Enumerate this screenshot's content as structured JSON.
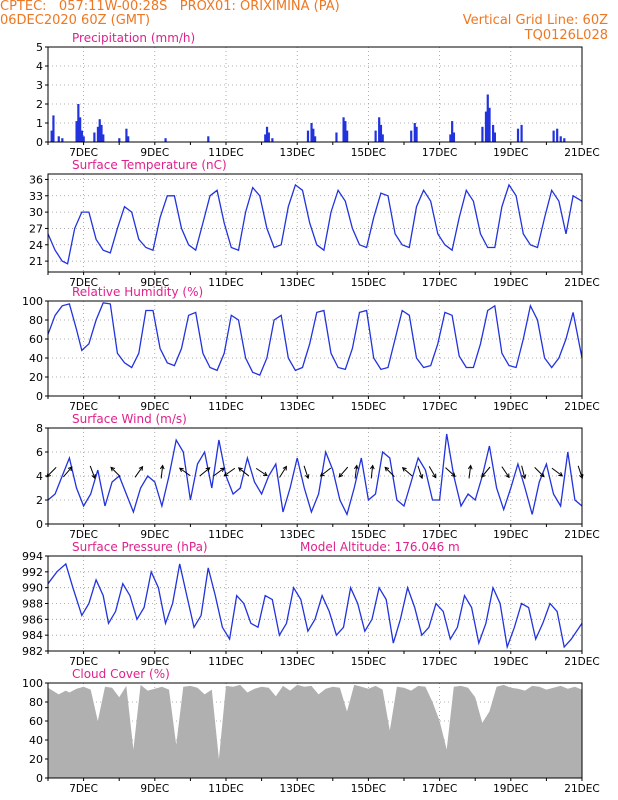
{
  "header": {
    "line1": "CPTEC:   057:11W-00:28S   PROX01: ORIXIMINA (PA)",
    "line2": "06DEC2020 60Z (GMT)",
    "grid_note": "Vertical Grid Line: 60Z",
    "code": "TQ0126L028"
  },
  "colors": {
    "header": "#ee7722",
    "title": "#e0208c",
    "line": "#2233dd",
    "cloud": "#b0b0b0"
  },
  "x_axis": {
    "labels": [
      "7DEC",
      "9DEC",
      "11DEC",
      "13DEC",
      "15DEC",
      "17DEC",
      "19DEC",
      "21DEC"
    ],
    "label_days": [
      1,
      3,
      5,
      7,
      9,
      11,
      13,
      15
    ],
    "range_days": [
      0,
      15
    ]
  },
  "chart_data": [
    {
      "id": "precip",
      "type": "bar",
      "title": "Precipitation (mm/h)",
      "ylim": [
        0,
        5
      ],
      "yticks": [
        0,
        1,
        2,
        3,
        4,
        5
      ],
      "x_days": [
        0.1,
        0.15,
        0.3,
        0.4,
        0.8,
        0.85,
        0.9,
        0.95,
        1.0,
        1.3,
        1.4,
        1.45,
        1.5,
        1.55,
        2.0,
        2.2,
        2.25,
        3.3,
        4.5,
        6.1,
        6.15,
        6.2,
        6.3,
        7.3,
        7.4,
        7.45,
        7.5,
        8.1,
        8.3,
        8.35,
        8.4,
        9.2,
        9.3,
        9.35,
        9.4,
        10.2,
        10.3,
        10.35,
        11.3,
        11.35,
        11.4,
        12.2,
        12.3,
        12.35,
        12.4,
        12.5,
        12.55,
        13.2,
        13.3,
        14.2,
        14.3,
        14.4,
        14.5
      ],
      "values": [
        0.6,
        1.4,
        0.3,
        0.2,
        1.1,
        2.0,
        1.3,
        0.6,
        0.3,
        0.5,
        0.8,
        1.2,
        0.9,
        0.4,
        0.2,
        0.7,
        0.3,
        0.2,
        0.3,
        0.4,
        0.8,
        0.5,
        0.2,
        0.6,
        1.0,
        0.7,
        0.3,
        0.5,
        1.3,
        1.1,
        0.6,
        0.6,
        1.3,
        0.9,
        0.4,
        0.6,
        1.0,
        0.8,
        0.4,
        1.1,
        0.5,
        0.8,
        1.6,
        2.5,
        1.8,
        0.9,
        0.5,
        0.7,
        0.9,
        0.6,
        0.7,
        0.3,
        0.2
      ]
    },
    {
      "id": "temp",
      "type": "line",
      "title": "Surface Temperature (nC)",
      "ylim": [
        19,
        37
      ],
      "yticks": [
        21,
        24,
        27,
        30,
        33,
        36
      ],
      "x_days": [
        0,
        0.2,
        0.4,
        0.55,
        0.75,
        0.95,
        1.15,
        1.35,
        1.55,
        1.75,
        1.95,
        2.15,
        2.35,
        2.55,
        2.75,
        2.95,
        3.15,
        3.35,
        3.55,
        3.75,
        3.95,
        4.15,
        4.35,
        4.55,
        4.75,
        4.95,
        5.15,
        5.35,
        5.55,
        5.75,
        5.95,
        6.15,
        6.35,
        6.55,
        6.75,
        6.95,
        7.15,
        7.35,
        7.55,
        7.75,
        7.95,
        8.15,
        8.35,
        8.55,
        8.75,
        8.95,
        9.15,
        9.35,
        9.55,
        9.75,
        9.95,
        10.15,
        10.35,
        10.55,
        10.75,
        10.95,
        11.15,
        11.35,
        11.55,
        11.75,
        11.95,
        12.15,
        12.35,
        12.55,
        12.75,
        12.95,
        13.15,
        13.35,
        13.55,
        13.75,
        13.95,
        14.15,
        14.35,
        14.55,
        14.75,
        15
      ],
      "values": [
        26,
        23,
        21,
        20.5,
        27,
        30,
        30,
        25,
        23,
        22.5,
        27,
        31,
        30,
        25,
        23.5,
        23,
        29,
        33,
        33,
        27,
        24,
        23,
        28,
        33,
        34,
        28,
        23.5,
        23,
        30,
        34.5,
        33,
        27,
        23.5,
        24,
        31,
        35,
        34,
        28,
        24,
        23,
        30,
        34,
        32,
        27,
        24,
        23.5,
        29,
        33.5,
        33,
        26,
        24,
        23.5,
        31,
        34,
        32,
        26,
        24,
        23,
        29,
        34,
        32,
        26,
        23.5,
        23.5,
        31,
        35,
        33,
        26,
        24,
        23.5,
        29,
        34,
        32,
        26,
        33,
        32
      ]
    },
    {
      "id": "rh",
      "type": "line",
      "title": "Relative Humidity (%)",
      "ylim": [
        0,
        100
      ],
      "yticks": [
        0,
        20,
        40,
        60,
        80,
        100
      ],
      "x_days": [
        0,
        0.2,
        0.4,
        0.6,
        0.8,
        0.95,
        1.15,
        1.35,
        1.55,
        1.75,
        1.95,
        2.15,
        2.35,
        2.55,
        2.75,
        2.95,
        3.15,
        3.35,
        3.55,
        3.75,
        3.95,
        4.15,
        4.35,
        4.55,
        4.75,
        4.95,
        5.15,
        5.35,
        5.55,
        5.75,
        5.95,
        6.15,
        6.35,
        6.55,
        6.75,
        6.95,
        7.15,
        7.35,
        7.55,
        7.75,
        7.95,
        8.15,
        8.35,
        8.55,
        8.75,
        8.95,
        9.15,
        9.35,
        9.55,
        9.75,
        9.95,
        10.15,
        10.35,
        10.55,
        10.75,
        10.95,
        11.15,
        11.35,
        11.55,
        11.75,
        11.95,
        12.15,
        12.35,
        12.55,
        12.75,
        12.95,
        13.15,
        13.35,
        13.55,
        13.75,
        13.95,
        14.15,
        14.35,
        14.55,
        14.75,
        15
      ],
      "values": [
        65,
        85,
        95,
        97,
        70,
        48,
        55,
        80,
        98,
        97,
        45,
        35,
        30,
        45,
        90,
        90,
        50,
        35,
        32,
        50,
        85,
        88,
        45,
        30,
        27,
        45,
        85,
        80,
        40,
        25,
        22,
        40,
        80,
        85,
        40,
        27,
        30,
        55,
        88,
        90,
        45,
        30,
        28,
        50,
        88,
        90,
        40,
        28,
        30,
        60,
        90,
        85,
        40,
        30,
        32,
        55,
        88,
        85,
        42,
        30,
        30,
        55,
        90,
        95,
        45,
        32,
        30,
        60,
        95,
        80,
        40,
        30,
        40,
        60,
        88,
        40
      ]
    },
    {
      "id": "wind",
      "type": "line",
      "title": "Surface Wind (m/s)",
      "ylim": [
        0,
        8
      ],
      "yticks": [
        0,
        2,
        4,
        6,
        8
      ],
      "x_days": [
        0,
        0.2,
        0.4,
        0.6,
        0.8,
        1.0,
        1.2,
        1.4,
        1.6,
        1.8,
        2.0,
        2.2,
        2.4,
        2.6,
        2.8,
        3.0,
        3.2,
        3.4,
        3.6,
        3.8,
        4.0,
        4.2,
        4.4,
        4.6,
        4.8,
        5.0,
        5.2,
        5.4,
        5.6,
        5.8,
        6.0,
        6.2,
        6.4,
        6.6,
        6.8,
        7.0,
        7.2,
        7.4,
        7.6,
        7.8,
        8.0,
        8.2,
        8.4,
        8.6,
        8.8,
        9.0,
        9.2,
        9.4,
        9.6,
        9.8,
        10.0,
        10.2,
        10.4,
        10.6,
        10.8,
        11.0,
        11.2,
        11.4,
        11.6,
        11.8,
        12.0,
        12.2,
        12.4,
        12.6,
        12.8,
        13.0,
        13.2,
        13.4,
        13.6,
        13.8,
        14.0,
        14.2,
        14.4,
        14.6,
        14.8,
        15
      ],
      "values": [
        2,
        2.5,
        4,
        5.5,
        3,
        1.5,
        2.5,
        4.5,
        1.5,
        3.5,
        4,
        2.5,
        1,
        3,
        4,
        3.5,
        1.5,
        4,
        7,
        6,
        2,
        5,
        6,
        3,
        7,
        4,
        2.5,
        3,
        5.5,
        3.5,
        2.5,
        4,
        5,
        1,
        3,
        5.5,
        3,
        1,
        2.5,
        6,
        4.5,
        2,
        0.8,
        3,
        5.5,
        2,
        2.5,
        6,
        5.5,
        2,
        1.5,
        3.5,
        5.5,
        4.5,
        2,
        2,
        7.5,
        4,
        1.5,
        2.5,
        2,
        4,
        6.5,
        3,
        1.2,
        3,
        5,
        3,
        0.8,
        3.5,
        5,
        2.5,
        1.5,
        6,
        2,
        1.5
      ],
      "arrows": {
        "x_days": [
          0.1,
          0.55,
          1.25,
          1.9,
          2.55,
          3.2,
          3.85,
          4.4,
          4.8,
          5.1,
          5.5,
          6.0,
          6.6,
          7.25,
          7.8,
          8.3,
          8.65,
          9.1,
          9.6,
          10.1,
          10.45,
          10.8,
          11.3,
          11.85,
          12.3,
          12.85,
          13.35,
          13.8,
          14.3,
          14.95
        ],
        "u": [
          -0.8,
          0.6,
          0.3,
          -0.6,
          0.5,
          0.1,
          -0.7,
          1.2,
          1.6,
          -0.7,
          -1.0,
          1.2,
          0.5,
          0.3,
          -0.9,
          -0.7,
          0.1,
          0.1,
          -0.8,
          -0.8,
          0.3,
          0.7,
          1.2,
          0.1,
          -0.5,
          0.4,
          0.2,
          0.6,
          0.8,
          0.3
        ],
        "v": [
          -0.8,
          0.7,
          -0.8,
          0.6,
          0.7,
          0.9,
          0.5,
          1.0,
          1.2,
          -0.5,
          0.8,
          -0.8,
          0.8,
          -0.9,
          -0.7,
          -0.8,
          0.8,
          0.9,
          0.8,
          0.7,
          -0.9,
          -1.2,
          -1.1,
          0.8,
          -0.6,
          -0.6,
          -0.8,
          -0.6,
          -0.6,
          -0.9
        ]
      }
    },
    {
      "id": "press",
      "type": "line",
      "title": "Surface Pressure (hPa)",
      "annotation": "Model Altitude: 176.046 m",
      "ylim": [
        982,
        994
      ],
      "yticks": [
        982,
        984,
        986,
        988,
        990,
        992,
        994
      ],
      "x_days": [
        0,
        0.25,
        0.5,
        0.7,
        0.95,
        1.15,
        1.35,
        1.55,
        1.7,
        1.9,
        2.1,
        2.3,
        2.5,
        2.7,
        2.9,
        3.1,
        3.3,
        3.5,
        3.7,
        3.9,
        4.1,
        4.3,
        4.5,
        4.7,
        4.9,
        5.1,
        5.3,
        5.5,
        5.7,
        5.9,
        6.1,
        6.3,
        6.5,
        6.7,
        6.9,
        7.1,
        7.3,
        7.5,
        7.7,
        7.9,
        8.1,
        8.3,
        8.5,
        8.7,
        8.9,
        9.1,
        9.3,
        9.5,
        9.7,
        9.9,
        10.1,
        10.3,
        10.5,
        10.7,
        10.9,
        11.1,
        11.3,
        11.5,
        11.7,
        11.9,
        12.1,
        12.3,
        12.5,
        12.7,
        12.9,
        13.1,
        13.3,
        13.5,
        13.7,
        13.9,
        14.1,
        14.3,
        14.5,
        14.7,
        15
      ],
      "values": [
        990.5,
        992,
        993,
        990,
        986.5,
        988,
        991,
        989,
        985.5,
        987,
        990.5,
        989,
        986,
        987.5,
        992,
        990,
        985.5,
        988,
        993,
        989,
        985,
        986.5,
        992.5,
        989,
        985,
        983.5,
        989,
        988,
        985.5,
        985,
        989,
        988.5,
        984,
        985.5,
        990,
        988.5,
        984.5,
        986,
        989,
        987,
        984,
        985,
        990,
        988,
        984.5,
        986,
        990,
        988.5,
        983,
        986,
        990,
        987.5,
        984,
        985,
        988,
        987,
        983.5,
        985,
        989,
        987.5,
        983,
        985.5,
        990,
        988,
        982.5,
        985,
        988,
        987.5,
        983.5,
        985.5,
        988,
        987,
        982.5,
        983.5,
        985.5
      ]
    },
    {
      "id": "cloud",
      "type": "area",
      "title": "Cloud Cover (%)",
      "ylim": [
        0,
        100
      ],
      "yticks": [
        0,
        20,
        40,
        60,
        80,
        100
      ],
      "x_days": [
        0,
        0.3,
        0.5,
        0.6,
        0.8,
        1.0,
        1.2,
        1.4,
        1.6,
        1.8,
        2.0,
        2.2,
        2.4,
        2.6,
        2.8,
        3.0,
        3.2,
        3.4,
        3.6,
        3.8,
        4.0,
        4.2,
        4.4,
        4.6,
        4.8,
        5.0,
        5.2,
        5.4,
        5.6,
        5.8,
        6.0,
        6.2,
        6.4,
        6.6,
        6.8,
        7.0,
        7.2,
        7.4,
        7.6,
        7.8,
        8.0,
        8.2,
        8.4,
        8.6,
        8.8,
        9.0,
        9.2,
        9.4,
        9.6,
        9.8,
        10.0,
        10.2,
        10.4,
        10.6,
        10.8,
        11.0,
        11.2,
        11.4,
        11.6,
        11.8,
        12.0,
        12.2,
        12.4,
        12.6,
        12.8,
        13.0,
        13.2,
        13.4,
        13.6,
        13.8,
        14.0,
        14.2,
        14.4,
        14.6,
        14.8,
        15
      ],
      "values": [
        95,
        88,
        92,
        90,
        94,
        96,
        93,
        60,
        96,
        95,
        85,
        97,
        30,
        98,
        92,
        94,
        96,
        93,
        35,
        96,
        97,
        95,
        88,
        93,
        20,
        97,
        96,
        98,
        90,
        94,
        96,
        95,
        86,
        97,
        92,
        98,
        96,
        97,
        88,
        94,
        96,
        95,
        70,
        98,
        96,
        94,
        97,
        93,
        50,
        96,
        95,
        92,
        97,
        96,
        80,
        60,
        30,
        96,
        97,
        95,
        85,
        58,
        70,
        96,
        98,
        95,
        94,
        92,
        97,
        96,
        93,
        95,
        97,
        94,
        96,
        93
      ]
    }
  ]
}
